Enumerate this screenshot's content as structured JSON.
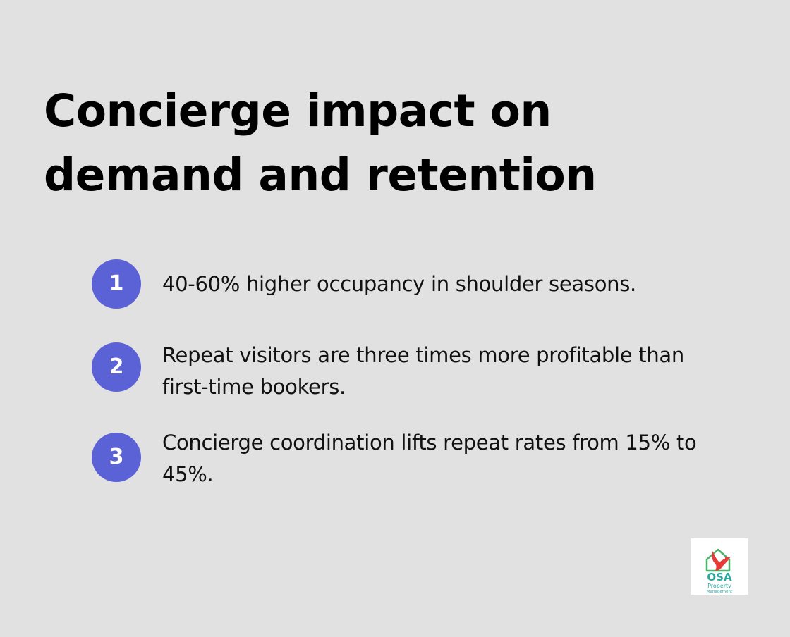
{
  "title": "Concierge impact on demand and retention",
  "items": [
    {
      "number": "1",
      "text": "40-60% higher occupancy in shoulder seasons."
    },
    {
      "number": "2",
      "text": "Repeat visitors are three times more profitable than first-time bookers."
    },
    {
      "number": "3",
      "text": "Concierge coordination lifts repeat rates from 15% to 45%."
    }
  ],
  "logo": {
    "line1": "OSA",
    "line2": "Property",
    "line3": "Management"
  },
  "colors": {
    "background": "#e0e1e0",
    "badge": "#5b62d6",
    "logo_house": "#4bb36c",
    "logo_bird": "#e63a37",
    "logo_text": "#2aa8a0"
  }
}
